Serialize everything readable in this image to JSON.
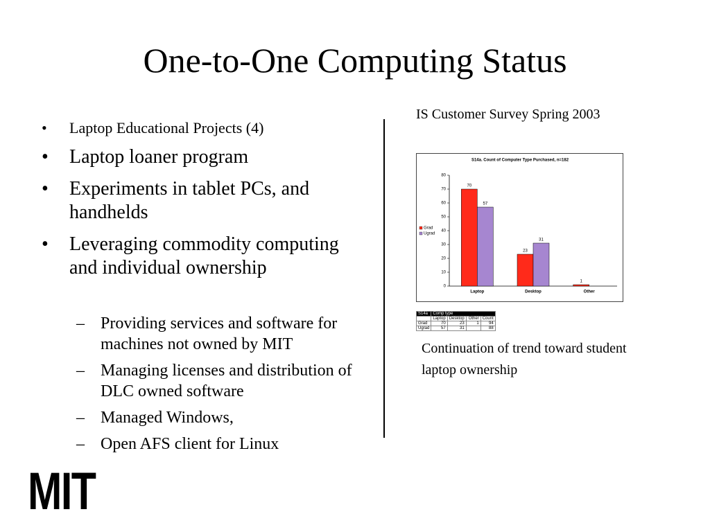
{
  "title": "One-to-One Computing Status",
  "bullets": [
    "Laptop Educational Projects (4)",
    "Laptop loaner program",
    "Experiments in tablet PCs, and handhelds",
    "Leveraging commodity computing and individual ownership"
  ],
  "sub_bullets": [
    "Providing services and software for machines not owned by MIT",
    "Managing licenses and distribution of DLC owned software",
    "Managed Windows,",
    "Open AFS client for Linux"
  ],
  "caption_top": "IS Customer Survey Spring 2003",
  "caption_bottom": "Continuation of trend toward student laptop ownership",
  "logo": "MIT",
  "chart_data": {
    "type": "bar",
    "title": "S14a. Count of Computer Type Purchased, n=182",
    "categories": [
      "Laptop",
      "Desktop",
      "Other"
    ],
    "series": [
      {
        "name": "Grad",
        "color": "#ff2a1a",
        "values": [
          70,
          23,
          1
        ]
      },
      {
        "name": "Ugrad",
        "color": "#a686d0",
        "values": [
          57,
          31,
          null
        ]
      }
    ],
    "ylim": [
      0,
      80
    ],
    "yticks": [
      0,
      10,
      20,
      30,
      40,
      50,
      60,
      70,
      80
    ],
    "legend": "left"
  },
  "table": {
    "caption": "S14a",
    "group": "Comp type",
    "columns": [
      "Laptop",
      "Desktop",
      "Other",
      "Count"
    ],
    "rows": [
      {
        "label": "Grad",
        "cells": [
          70,
          23,
          1,
          94
        ]
      },
      {
        "label": "Ugrad",
        "cells": [
          57,
          31,
          null,
          88
        ]
      }
    ]
  }
}
